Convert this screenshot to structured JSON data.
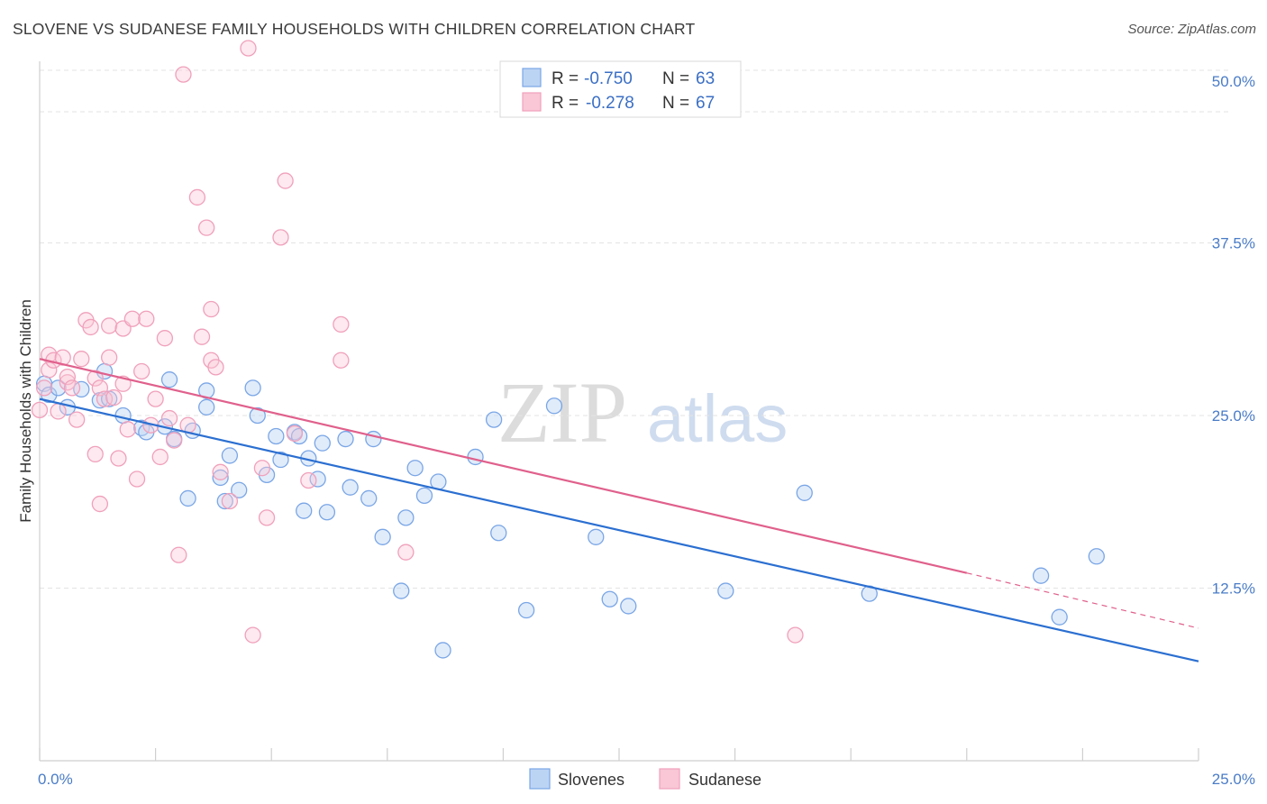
{
  "title": "SLOVENE VS SUDANESE FAMILY HOUSEHOLDS WITH CHILDREN CORRELATION CHART",
  "source": "Source: ZipAtlas.com",
  "watermark": {
    "zip": "ZIP",
    "atlas": "atlas"
  },
  "legend": {
    "r_label": "R =",
    "n_label": "N =",
    "rows": [
      {
        "r": "-0.750",
        "n": "63"
      },
      {
        "r": "-0.278",
        "n": "67"
      }
    ]
  },
  "bottom_legend": [
    "Slovenes",
    "Sudanese"
  ],
  "chart_data": {
    "type": "scatter",
    "title": "SLOVENE VS SUDANESE FAMILY HOUSEHOLDS WITH CHILDREN CORRELATION CHART",
    "xlabel": "",
    "ylabel": "Family Households with Children",
    "xlim": [
      0,
      25
    ],
    "ylim": [
      0,
      50
    ],
    "x_tick_labels": [
      "0.0%",
      "25.0%"
    ],
    "y_ticks": [
      12.5,
      25.0,
      37.5,
      50.0
    ],
    "y_tick_labels": [
      "12.5%",
      "25.0%",
      "37.5%",
      "50.0%"
    ],
    "grid": true,
    "legend_position": "top-center",
    "colors": {
      "Slovenes": "#7aa6e6",
      "Sudanese": "#f0a0bb",
      "slovenes_line": "#2b6fd1",
      "sudanese_line": "#e0608c"
    },
    "series": [
      {
        "name": "Slovenes",
        "r": -0.75,
        "n": 63,
        "trend": {
          "x": [
            0,
            25
          ],
          "y": [
            26.2,
            7.2
          ]
        },
        "points": [
          [
            0.1,
            27.3
          ],
          [
            0.2,
            26.5
          ],
          [
            0.4,
            27.0
          ],
          [
            0.6,
            25.6
          ],
          [
            0.9,
            26.9
          ],
          [
            1.3,
            26.1
          ],
          [
            1.4,
            28.2
          ],
          [
            1.5,
            26.2
          ],
          [
            1.8,
            25.0
          ],
          [
            2.2,
            24.1
          ],
          [
            2.3,
            23.8
          ],
          [
            2.7,
            24.2
          ],
          [
            2.8,
            27.6
          ],
          [
            2.9,
            23.3
          ],
          [
            3.2,
            19.0
          ],
          [
            3.3,
            23.9
          ],
          [
            3.6,
            25.6
          ],
          [
            3.6,
            26.8
          ],
          [
            3.9,
            20.5
          ],
          [
            4.0,
            18.8
          ],
          [
            4.1,
            22.1
          ],
          [
            4.3,
            19.6
          ],
          [
            4.6,
            27.0
          ],
          [
            4.7,
            25.0
          ],
          [
            4.9,
            20.7
          ],
          [
            5.1,
            23.5
          ],
          [
            5.2,
            21.8
          ],
          [
            5.5,
            23.8
          ],
          [
            5.6,
            23.5
          ],
          [
            5.7,
            18.1
          ],
          [
            5.8,
            21.9
          ],
          [
            6.0,
            20.4
          ],
          [
            6.1,
            23.0
          ],
          [
            6.2,
            18.0
          ],
          [
            6.6,
            23.3
          ],
          [
            6.7,
            19.8
          ],
          [
            7.1,
            19.0
          ],
          [
            7.2,
            23.3
          ],
          [
            7.4,
            16.2
          ],
          [
            7.8,
            12.3
          ],
          [
            7.9,
            17.6
          ],
          [
            8.1,
            21.2
          ],
          [
            8.3,
            19.2
          ],
          [
            8.6,
            20.2
          ],
          [
            8.7,
            8.0
          ],
          [
            9.4,
            22.0
          ],
          [
            9.8,
            24.7
          ],
          [
            9.9,
            16.5
          ],
          [
            10.5,
            10.9
          ],
          [
            11.1,
            25.7
          ],
          [
            12.0,
            16.2
          ],
          [
            12.3,
            11.7
          ],
          [
            12.7,
            11.2
          ],
          [
            14.8,
            12.3
          ],
          [
            16.5,
            19.4
          ],
          [
            17.9,
            12.1
          ],
          [
            21.6,
            13.4
          ],
          [
            22.0,
            10.4
          ],
          [
            22.8,
            14.8
          ]
        ]
      },
      {
        "name": "Sudanese",
        "r": -0.278,
        "n": 67,
        "trend": {
          "x": [
            0,
            20.0
          ],
          "y": [
            29.1,
            13.6
          ]
        },
        "trend_dashed": {
          "x": [
            20.0,
            25
          ],
          "y": [
            13.6,
            9.6
          ]
        },
        "points": [
          [
            0.0,
            25.4
          ],
          [
            0.1,
            27.0
          ],
          [
            0.2,
            28.3
          ],
          [
            0.2,
            29.4
          ],
          [
            0.3,
            29.0
          ],
          [
            0.4,
            25.3
          ],
          [
            0.5,
            29.2
          ],
          [
            0.6,
            27.4
          ],
          [
            0.6,
            27.8
          ],
          [
            0.7,
            27.0
          ],
          [
            0.8,
            24.7
          ],
          [
            0.9,
            29.1
          ],
          [
            1.0,
            31.9
          ],
          [
            1.1,
            31.4
          ],
          [
            1.2,
            27.7
          ],
          [
            1.2,
            22.2
          ],
          [
            1.3,
            27.0
          ],
          [
            1.3,
            18.6
          ],
          [
            1.4,
            26.2
          ],
          [
            1.5,
            31.5
          ],
          [
            1.5,
            29.2
          ],
          [
            1.6,
            26.3
          ],
          [
            1.7,
            21.9
          ],
          [
            1.8,
            31.3
          ],
          [
            1.8,
            27.3
          ],
          [
            1.9,
            24.0
          ],
          [
            2.0,
            32.0
          ],
          [
            2.1,
            20.4
          ],
          [
            2.2,
            28.2
          ],
          [
            2.3,
            32.0
          ],
          [
            2.4,
            24.3
          ],
          [
            2.5,
            26.2
          ],
          [
            2.6,
            22.0
          ],
          [
            2.7,
            30.6
          ],
          [
            2.8,
            24.8
          ],
          [
            2.9,
            23.2
          ],
          [
            3.0,
            14.9
          ],
          [
            3.1,
            49.7
          ],
          [
            3.2,
            24.3
          ],
          [
            3.4,
            40.8
          ],
          [
            3.5,
            30.7
          ],
          [
            3.6,
            38.6
          ],
          [
            3.7,
            32.7
          ],
          [
            3.7,
            29.0
          ],
          [
            3.8,
            28.5
          ],
          [
            3.9,
            20.9
          ],
          [
            4.1,
            18.8
          ],
          [
            4.5,
            51.6
          ],
          [
            4.6,
            9.1
          ],
          [
            4.8,
            21.2
          ],
          [
            4.9,
            17.6
          ],
          [
            5.2,
            37.9
          ],
          [
            5.3,
            42.0
          ],
          [
            5.5,
            23.7
          ],
          [
            5.8,
            20.3
          ],
          [
            6.5,
            29.0
          ],
          [
            6.5,
            31.6
          ],
          [
            7.9,
            15.1
          ],
          [
            16.3,
            9.1
          ]
        ]
      }
    ]
  }
}
